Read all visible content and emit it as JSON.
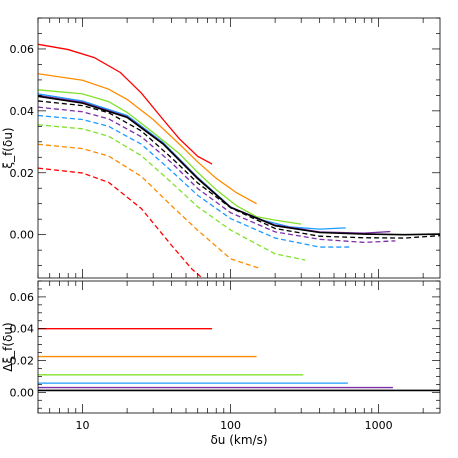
{
  "chart_data": [
    {
      "type": "line",
      "panel": "top",
      "ylabel": "ξ_f(δu)",
      "xscale": "log",
      "xlim": [
        5,
        2600
      ],
      "ylim": [
        -0.014,
        0.07
      ],
      "yticks": [
        0.0,
        0.02,
        0.04,
        0.06
      ],
      "ytick_labels": [
        "0.00",
        "0.02",
        "0.04",
        "0.06"
      ],
      "xticks": [
        10,
        100,
        1000
      ],
      "xtick_labels": [
        "",
        "",
        ""
      ],
      "series": [
        {
          "color": "#ff0000",
          "style": "solid",
          "x": [
            5,
            8,
            12,
            18,
            25,
            35,
            45,
            60,
            75
          ],
          "y": [
            0.0615,
            0.0598,
            0.0572,
            0.0524,
            0.0457,
            0.0372,
            0.031,
            0.0253,
            0.0228
          ]
        },
        {
          "color": "#ff8c00",
          "style": "solid",
          "x": [
            5,
            10,
            15,
            20,
            30,
            45,
            60,
            80,
            110,
            150
          ],
          "y": [
            0.052,
            0.0499,
            0.047,
            0.0437,
            0.0372,
            0.0293,
            0.0235,
            0.0182,
            0.0135,
            0.01
          ]
        },
        {
          "color": "#7fe22a",
          "style": "solid",
          "x": [
            5,
            10,
            15,
            20,
            30,
            45,
            60,
            80,
            110,
            150,
            200,
            300
          ],
          "y": [
            0.0468,
            0.0455,
            0.043,
            0.0395,
            0.033,
            0.0262,
            0.0201,
            0.0145,
            0.0093,
            0.0058,
            0.0047,
            0.0034
          ]
        },
        {
          "color": "#1e9bff",
          "style": "solid",
          "x": [
            5,
            10,
            20,
            35,
            60,
            100,
            150,
            250,
            400,
            600
          ],
          "y": [
            0.0455,
            0.0432,
            0.0385,
            0.0298,
            0.0185,
            0.009,
            0.0052,
            0.0025,
            0.0018,
            0.0022
          ]
        },
        {
          "color": "#7b2fa8",
          "style": "solid",
          "x": [
            5,
            10,
            20,
            35,
            60,
            100,
            200,
            400,
            800,
            1200
          ],
          "y": [
            0.045,
            0.0428,
            0.0381,
            0.0295,
            0.0183,
            0.0089,
            0.0031,
            0.0009,
            0.0005,
            0.001
          ]
        },
        {
          "color": "#000000",
          "style": "solid",
          "x": [
            5,
            10,
            20,
            35,
            60,
            100,
            200,
            400,
            800,
            1500,
            2600
          ],
          "y": [
            0.0447,
            0.0425,
            0.0379,
            0.0293,
            0.0181,
            0.0088,
            0.0029,
            0.0007,
            0.0002,
            0.0,
            0.0002
          ]
        },
        {
          "color": "#000000",
          "style": "dashed",
          "x": [
            5,
            10,
            15,
            25,
            40,
            60,
            100,
            200,
            400,
            800,
            1500,
            2600
          ],
          "y": [
            0.0432,
            0.0417,
            0.0394,
            0.0335,
            0.0248,
            0.0167,
            0.0087,
            0.002,
            -0.0005,
            -0.001,
            -0.0011,
            -0.0003
          ]
        },
        {
          "color": "#7b2fa8",
          "style": "dashed",
          "x": [
            5,
            10,
            15,
            25,
            40,
            60,
            100,
            200,
            400,
            800,
            1300
          ],
          "y": [
            0.0412,
            0.0397,
            0.0374,
            0.0316,
            0.0232,
            0.0149,
            0.0071,
            0.0009,
            -0.0015,
            -0.0025,
            -0.002
          ]
        },
        {
          "color": "#1e9bff",
          "style": "dashed",
          "x": [
            5,
            10,
            15,
            25,
            40,
            60,
            100,
            200,
            400,
            650
          ],
          "y": [
            0.0385,
            0.0372,
            0.035,
            0.0292,
            0.0205,
            0.0127,
            0.0052,
            -0.0011,
            -0.004,
            -0.004
          ]
        },
        {
          "color": "#7fe22a",
          "style": "dashed",
          "x": [
            5,
            10,
            15,
            25,
            40,
            60,
            100,
            200,
            320
          ],
          "y": [
            0.0355,
            0.0342,
            0.0318,
            0.0255,
            0.0168,
            0.009,
            0.0015,
            -0.0062,
            -0.0082
          ]
        },
        {
          "color": "#ff8c00",
          "style": "dashed",
          "x": [
            5,
            10,
            15,
            25,
            40,
            60,
            100,
            155
          ],
          "y": [
            0.0292,
            0.0278,
            0.0254,
            0.0188,
            0.0093,
            0.0014,
            -0.0078,
            -0.0108
          ]
        },
        {
          "color": "#ff0000",
          "style": "dashed",
          "x": [
            5,
            10,
            15,
            25,
            40,
            55,
            68
          ],
          "y": [
            0.0215,
            0.0199,
            0.0169,
            0.0084,
            -0.0035,
            -0.0112,
            -0.015
          ]
        }
      ]
    },
    {
      "type": "line",
      "panel": "bottom",
      "xlabel": "δu (km/s)",
      "ylabel": "Δξ_f(δu)",
      "xscale": "log",
      "xlim": [
        5,
        2600
      ],
      "ylim": [
        -0.013,
        0.07
      ],
      "yticks": [
        0.0,
        0.02,
        0.04,
        0.06
      ],
      "ytick_labels": [
        "0.00",
        "0.02",
        "0.04",
        "0.06"
      ],
      "xticks": [
        10,
        100,
        1000
      ],
      "xtick_labels": [
        "10",
        "100",
        "1000"
      ],
      "series": [
        {
          "color": "#ff0000",
          "style": "solid",
          "x": [
            5,
            75
          ],
          "y": [
            0.04,
            0.04
          ]
        },
        {
          "color": "#ff8c00",
          "style": "solid",
          "x": [
            5,
            150
          ],
          "y": [
            0.0225,
            0.0225
          ]
        },
        {
          "color": "#7fe22a",
          "style": "solid",
          "x": [
            5,
            310
          ],
          "y": [
            0.011,
            0.011
          ]
        },
        {
          "color": "#1e9bff",
          "style": "solid",
          "x": [
            5,
            620
          ],
          "y": [
            0.0058,
            0.0058
          ]
        },
        {
          "color": "#7b2fa8",
          "style": "solid",
          "x": [
            5,
            1250
          ],
          "y": [
            0.003,
            0.003
          ]
        },
        {
          "color": "#000000",
          "style": "solid",
          "x": [
            5,
            2600
          ],
          "y": [
            0.0012,
            0.0012
          ]
        }
      ]
    }
  ]
}
